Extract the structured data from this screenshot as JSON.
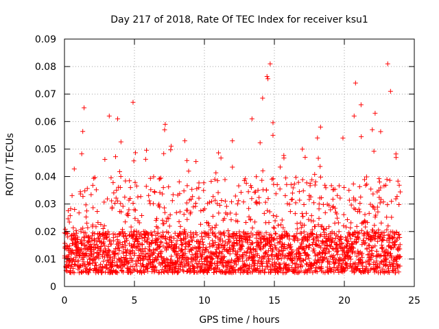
{
  "chart_data": {
    "type": "scatter",
    "title": "Day 217 of 2018, Rate Of TEC Index for receiver ksu1",
    "xlabel": "GPS time / hours",
    "ylabel": "ROTI / TECUs",
    "xlim": [
      0,
      25
    ],
    "ylim": [
      0,
      0.09
    ],
    "x_ticks": [
      "0",
      "5",
      "10",
      "15",
      "20",
      "25"
    ],
    "y_ticks": [
      "0",
      "0.01",
      "0.02",
      "0.03",
      "0.04",
      "0.05",
      "0.06",
      "0.07",
      "0.08",
      "0.09"
    ],
    "grid": true,
    "marker": "+",
    "series_color": "#ff0000",
    "series": [
      {
        "name": "ksu1 ROTI",
        "x_range": [
          0,
          24
        ],
        "baseline_range": [
          0.005,
          0.02
        ],
        "envelope": [
          {
            "x": 0,
            "y": 0.02
          },
          {
            "x": 0.5,
            "y": 0.05
          },
          {
            "x": 1.5,
            "y": 0.065
          },
          {
            "x": 3,
            "y": 0.062
          },
          {
            "x": 5,
            "y": 0.067
          },
          {
            "x": 7,
            "y": 0.059
          },
          {
            "x": 8.5,
            "y": 0.054
          },
          {
            "x": 10,
            "y": 0.046
          },
          {
            "x": 12,
            "y": 0.053
          },
          {
            "x": 13.5,
            "y": 0.061
          },
          {
            "x": 14.7,
            "y": 0.081
          },
          {
            "x": 16,
            "y": 0.05
          },
          {
            "x": 18,
            "y": 0.058
          },
          {
            "x": 19.5,
            "y": 0.055
          },
          {
            "x": 20.8,
            "y": 0.074
          },
          {
            "x": 22.2,
            "y": 0.064
          },
          {
            "x": 23.1,
            "y": 0.081
          },
          {
            "x": 24,
            "y": 0.04
          }
        ],
        "highlighted_points": [
          {
            "x": 14.7,
            "y": 0.081
          },
          {
            "x": 23.1,
            "y": 0.081
          },
          {
            "x": 20.8,
            "y": 0.074
          },
          {
            "x": 23.3,
            "y": 0.071
          },
          {
            "x": 4.9,
            "y": 0.067
          },
          {
            "x": 1.4,
            "y": 0.065
          },
          {
            "x": 22.2,
            "y": 0.063
          },
          {
            "x": 3.2,
            "y": 0.062
          },
          {
            "x": 20.7,
            "y": 0.062
          },
          {
            "x": 13.4,
            "y": 0.061
          },
          {
            "x": 3.8,
            "y": 0.061
          },
          {
            "x": 7.2,
            "y": 0.059
          },
          {
            "x": 18.3,
            "y": 0.058
          },
          {
            "x": 14.9,
            "y": 0.055
          },
          {
            "x": 19.9,
            "y": 0.054
          },
          {
            "x": 8.6,
            "y": 0.053
          },
          {
            "x": 12.0,
            "y": 0.053
          },
          {
            "x": 17.0,
            "y": 0.05
          }
        ]
      }
    ]
  }
}
